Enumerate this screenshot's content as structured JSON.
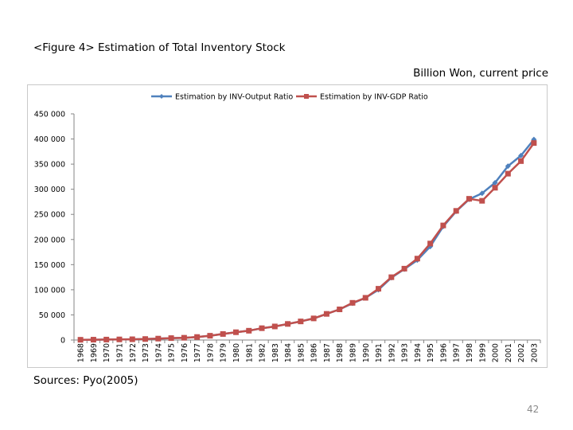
{
  "page": {
    "title": "<Figure 4> Estimation of Total Inventory Stock",
    "unit_note": "Billion Won, current price",
    "source": "Sources: Pyo(2005)",
    "page_number": "42"
  },
  "chart_data": {
    "type": "line",
    "title": "<Figure 4> Estimation of Total Inventory Stock",
    "xlabel": "",
    "ylabel": "Billion Won, current price",
    "ylim": [
      0,
      450000
    ],
    "yticks": [
      0,
      50000,
      100000,
      150000,
      200000,
      250000,
      300000,
      350000,
      400000,
      450000
    ],
    "ytick_labels": [
      "0",
      "50 000",
      "100 000",
      "150 000",
      "200 000",
      "250 000",
      "300 000",
      "350 000",
      "400 000",
      "450 000"
    ],
    "grid": false,
    "legend_position": "top-center",
    "categories": [
      "1968",
      "1969",
      "1970",
      "1971",
      "1972",
      "1973",
      "1974",
      "1975",
      "1976",
      "1977",
      "1978",
      "1979",
      "1980",
      "1981",
      "1982",
      "1983",
      "1984",
      "1985",
      "1986",
      "1987",
      "1988",
      "1989",
      "1990",
      "1991",
      "1992",
      "1993",
      "1994",
      "1995",
      "1996",
      "1997",
      "1998",
      "1999",
      "2000",
      "2001",
      "2002",
      "2003"
    ],
    "series": [
      {
        "name": "Estimation by INV-Output Ratio",
        "color": "#4f81bd",
        "marker": "diamond",
        "values": [
          500,
          700,
          900,
          1200,
          1500,
          2000,
          2800,
          3800,
          4500,
          6000,
          8500,
          12000,
          15500,
          18500,
          23500,
          27000,
          32000,
          37000,
          43000,
          52000,
          61000,
          73000,
          84000,
          100000,
          124000,
          141000,
          159000,
          186000,
          226000,
          256000,
          280000,
          292000,
          313000,
          346000,
          367000,
          399000
        ]
      },
      {
        "name": "Estimation by INV-GDP Ratio",
        "color": "#c0504d",
        "marker": "square",
        "values": [
          500,
          700,
          900,
          1200,
          1500,
          2000,
          2800,
          3800,
          4500,
          6000,
          8500,
          12000,
          15500,
          18500,
          23500,
          27000,
          32000,
          37000,
          43000,
          52000,
          61000,
          74000,
          84000,
          102000,
          125000,
          142000,
          162000,
          192000,
          228000,
          257000,
          281000,
          277000,
          303000,
          331000,
          356000,
          392000
        ]
      }
    ]
  }
}
